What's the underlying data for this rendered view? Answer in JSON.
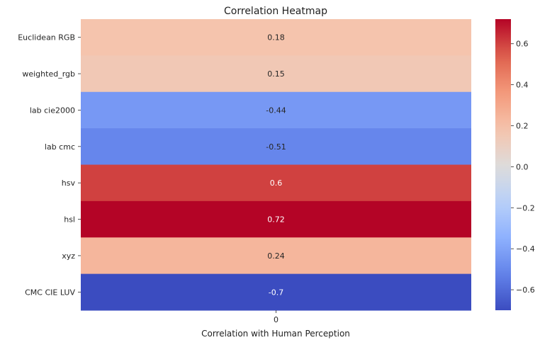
{
  "chart_data": {
    "type": "heatmap",
    "title": "Correlation Heatmap",
    "xlabel": "Correlation with Human Perception",
    "ylabel": "",
    "x_categories": [
      "0"
    ],
    "y_categories": [
      "Euclidean RGB",
      "weighted_rgb",
      "lab cie2000",
      "lab cmc",
      "hsv",
      "hsl",
      "xyz",
      "CMC CIE LUV"
    ],
    "values": [
      0.18,
      0.15,
      -0.44,
      -0.51,
      0.6,
      0.72,
      0.24,
      -0.7
    ],
    "value_labels": [
      "0.18",
      "0.15",
      "-0.44",
      "-0.51",
      "0.6",
      "0.72",
      "0.24",
      "-0.7"
    ],
    "colorbar": {
      "range": [
        -0.7,
        0.72
      ],
      "ticks": [
        0.6,
        0.4,
        0.2,
        0.0,
        -0.2,
        -0.4,
        -0.6
      ],
      "tick_labels": [
        "0.6",
        "0.4",
        "0.2",
        "0.0",
        "−0.2",
        "−0.4",
        "−0.6"
      ],
      "colormap": "coolwarm"
    },
    "colors": {
      "low": "#3b4cc0",
      "mid": "#dddcdc",
      "high": "#b40426"
    },
    "grid": false,
    "legend": "right"
  }
}
